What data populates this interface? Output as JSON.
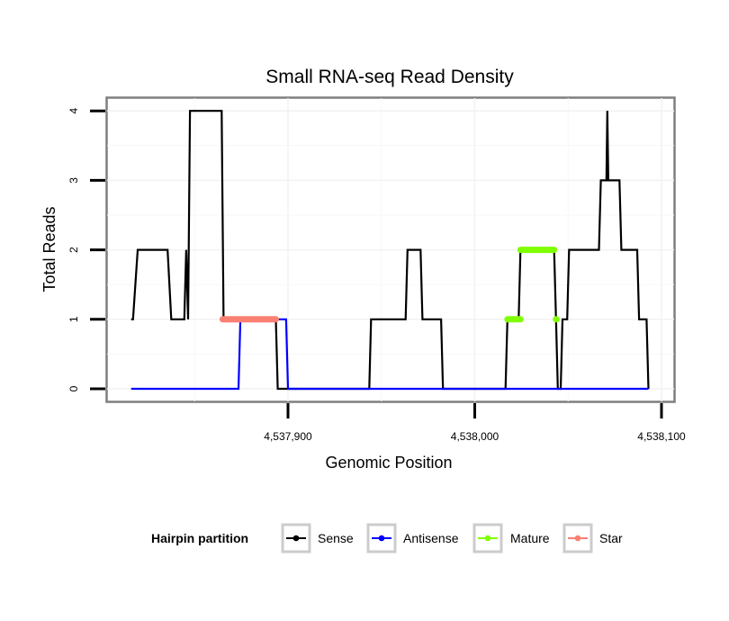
{
  "chart_data": {
    "type": "line",
    "title": "Small RNA-seq Read Density",
    "xlabel": "Genomic Position",
    "ylabel": "Total Reads",
    "xlim": [
      4537815.5,
      4538094
    ],
    "ylim": [
      -0.2,
      4.2
    ],
    "x_ticks": [
      4537900,
      4538000,
      4538100
    ],
    "x_tick_labels": [
      "4,537,900",
      "4,538,000",
      "4,538,100"
    ],
    "y_ticks": [
      0,
      1,
      2,
      3,
      4
    ],
    "y_tick_labels": [
      "0",
      "1",
      "2",
      "3",
      "4"
    ],
    "grid": true,
    "legend": {
      "title": "Hairpin partition",
      "placement": "bottom",
      "entries": [
        {
          "name": "Sense",
          "color": "#000000"
        },
        {
          "name": "Antisense",
          "color": "#0000ff"
        },
        {
          "name": "Mature",
          "color": "#7fff00"
        },
        {
          "name": "Star",
          "color": "#fa8072"
        }
      ]
    },
    "series": [
      {
        "name": "Sense",
        "color": "#000000",
        "style": "line",
        "points": [
          [
            4537816,
            1
          ],
          [
            4537817,
            1
          ],
          [
            4537819.5,
            2
          ],
          [
            4537835.5,
            2
          ],
          [
            4537837.5,
            1
          ],
          [
            4537844.5,
            1
          ],
          [
            4537845.5,
            2
          ],
          [
            4537846.5,
            1
          ],
          [
            4537847.5,
            4
          ],
          [
            4537864.5,
            4
          ],
          [
            4537865.5,
            1
          ],
          [
            4537893.5,
            1
          ],
          [
            4537894.5,
            0
          ],
          [
            4537943.5,
            0
          ],
          [
            4537944.5,
            1
          ],
          [
            4537963,
            1
          ],
          [
            4537964,
            2
          ],
          [
            4537971,
            2
          ],
          [
            4537972,
            1
          ],
          [
            4537982,
            1
          ],
          [
            4537983,
            0
          ],
          [
            4538016.5,
            0
          ],
          [
            4538017.5,
            1
          ],
          [
            4538023.5,
            1
          ],
          [
            4538024.5,
            2
          ],
          [
            4538042.5,
            2
          ],
          [
            4538043.5,
            1
          ],
          [
            4538044.5,
            0
          ],
          [
            4538046,
            0
          ],
          [
            4538047,
            1
          ],
          [
            4538049.5,
            1
          ],
          [
            4538050.5,
            2
          ],
          [
            4538066.5,
            2
          ],
          [
            4538067.5,
            3
          ],
          [
            4538070.5,
            3
          ],
          [
            4538071,
            4
          ],
          [
            4538071.5,
            3
          ],
          [
            4538077.5,
            3
          ],
          [
            4538078.5,
            2
          ],
          [
            4538087,
            2
          ],
          [
            4538088,
            1
          ],
          [
            4538092,
            1
          ],
          [
            4538093,
            0
          ]
        ]
      },
      {
        "name": "Antisense",
        "color": "#0000ff",
        "style": "line",
        "points": [
          [
            4537816,
            0
          ],
          [
            4537873.5,
            0
          ],
          [
            4537874.5,
            1
          ],
          [
            4537899,
            1
          ],
          [
            4537900,
            0
          ],
          [
            4538093,
            0
          ]
        ]
      },
      {
        "name": "Mature",
        "color": "#7fff00",
        "style": "thick-segments",
        "segments": [
          [
            [
              4538017.5,
              1
            ],
            [
              4538024.5,
              1
            ]
          ],
          [
            [
              4538024.5,
              2
            ],
            [
              4538042.5,
              2
            ]
          ],
          [
            [
              4538043.5,
              1
            ],
            [
              4538043.8,
              1
            ]
          ]
        ]
      },
      {
        "name": "Star",
        "color": "#fa8072",
        "style": "thick-segments",
        "segments": [
          [
            [
              4537865,
              1
            ],
            [
              4537893.5,
              1
            ]
          ]
        ]
      }
    ]
  }
}
